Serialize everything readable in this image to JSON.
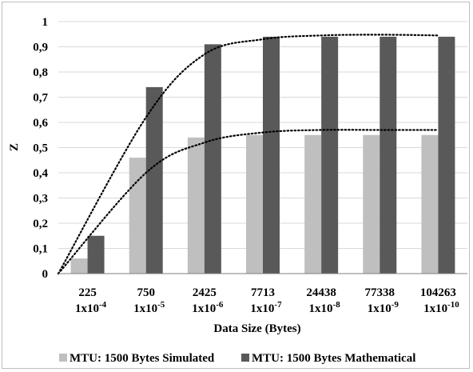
{
  "chart_data": {
    "type": "bar",
    "title": "",
    "xlabel": "Data Size (Bytes)",
    "ylabel": "Z",
    "ylim": [
      0,
      1
    ],
    "yticks": [
      "0",
      "0,1",
      "0,2",
      "0,3",
      "0,4",
      "0,5",
      "0,6",
      "0,7",
      "0,8",
      "0,9",
      "1"
    ],
    "categories": [
      {
        "size": "225",
        "prob_base": "1x10",
        "prob_exp": "-4"
      },
      {
        "size": "750",
        "prob_base": "1x10",
        "prob_exp": "-5"
      },
      {
        "size": "2425",
        "prob_base": "1x10",
        "prob_exp": "-6"
      },
      {
        "size": "7713",
        "prob_base": "1x10",
        "prob_exp": "-7"
      },
      {
        "size": "24438",
        "prob_base": "1x10",
        "prob_exp": "-8"
      },
      {
        "size": "77338",
        "prob_base": "1x10",
        "prob_exp": "-9"
      },
      {
        "size": "104263",
        "prob_base": "1x10",
        "prob_exp": "-10"
      }
    ],
    "series": [
      {
        "name": "MTU: 1500 Bytes Simulated",
        "color": "#bfbfbf",
        "values": [
          0.06,
          0.46,
          0.54,
          0.55,
          0.55,
          0.55,
          0.55
        ]
      },
      {
        "name": "MTU: 1500 Bytes Mathematical",
        "color": "#595959",
        "values": [
          0.15,
          0.74,
          0.91,
          0.94,
          0.94,
          0.94,
          0.94
        ]
      }
    ],
    "trendlines": [
      {
        "series": 0,
        "style": "dotted",
        "values": [
          0.0,
          0.4,
          0.52,
          0.56,
          0.57,
          0.57,
          0.57
        ]
      },
      {
        "series": 1,
        "style": "dotted",
        "values": [
          0.0,
          0.62,
          0.87,
          0.93,
          0.945,
          0.948,
          0.945
        ]
      }
    ],
    "grid": true,
    "legend_position": "bottom"
  }
}
